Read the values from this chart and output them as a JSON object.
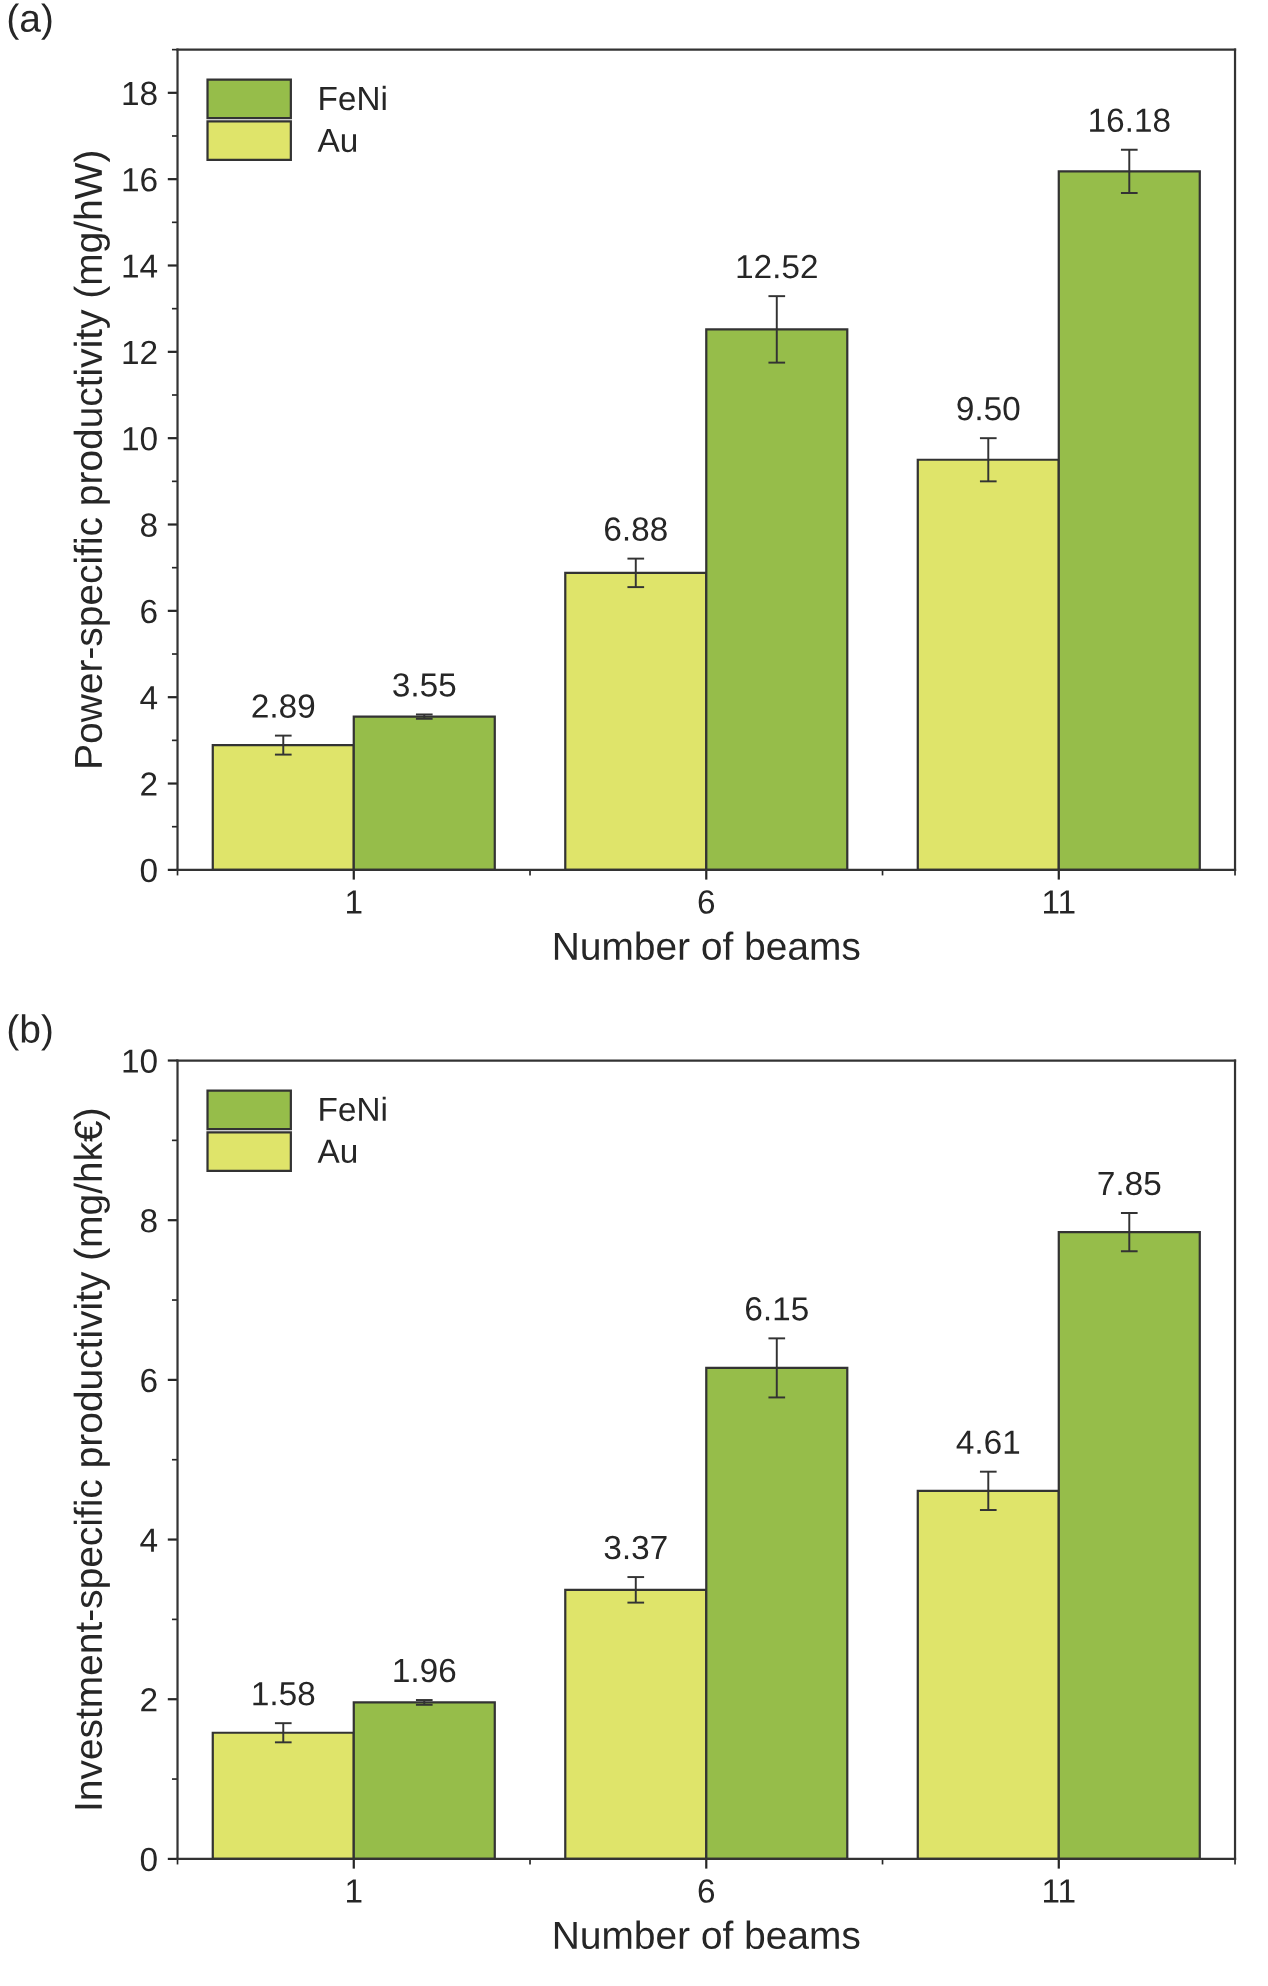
{
  "chart_data": [
    {
      "type": "bar",
      "title": "(a)",
      "xlabel": "Number of beams",
      "ylabel": "Power-specific productivity (mg/hW)",
      "categories": [
        "1",
        "6",
        "11"
      ],
      "series": [
        {
          "name": "Au",
          "color": "#dfe46a",
          "values": [
            2.89,
            6.88,
            9.5
          ],
          "errors": [
            0.22,
            0.33,
            0.5
          ],
          "value_labels": [
            "2.89",
            "6.88",
            "9.50"
          ]
        },
        {
          "name": "FeNi",
          "color": "#96bd4a",
          "values": [
            3.55,
            12.52,
            16.18
          ],
          "errors": [
            0.05,
            0.77,
            0.5
          ],
          "value_labels": [
            "3.55",
            "12.52",
            "16.18"
          ]
        }
      ],
      "ylim": [
        0,
        19
      ],
      "yticks": [
        0,
        2,
        4,
        6,
        8,
        10,
        12,
        14,
        16,
        18
      ],
      "legend": "top left",
      "grid": false
    },
    {
      "type": "bar",
      "title": "(b)",
      "xlabel": "Number of beams",
      "ylabel": "Investment-specific productivity (mg/hk€)",
      "categories": [
        "1",
        "6",
        "11"
      ],
      "series": [
        {
          "name": "Au",
          "color": "#dfe46a",
          "values": [
            1.58,
            3.37,
            4.61
          ],
          "errors": [
            0.12,
            0.16,
            0.24
          ],
          "value_labels": [
            "1.58",
            "3.37",
            "4.61"
          ]
        },
        {
          "name": "FeNi",
          "color": "#96bd4a",
          "values": [
            1.96,
            6.15,
            7.85
          ],
          "errors": [
            0.03,
            0.37,
            0.24
          ],
          "value_labels": [
            "1.96",
            "6.15",
            "7.85"
          ]
        }
      ],
      "ylim": [
        0,
        10
      ],
      "yticks": [
        0,
        2,
        4,
        6,
        8,
        10
      ],
      "legend": "top left",
      "grid": false
    }
  ]
}
